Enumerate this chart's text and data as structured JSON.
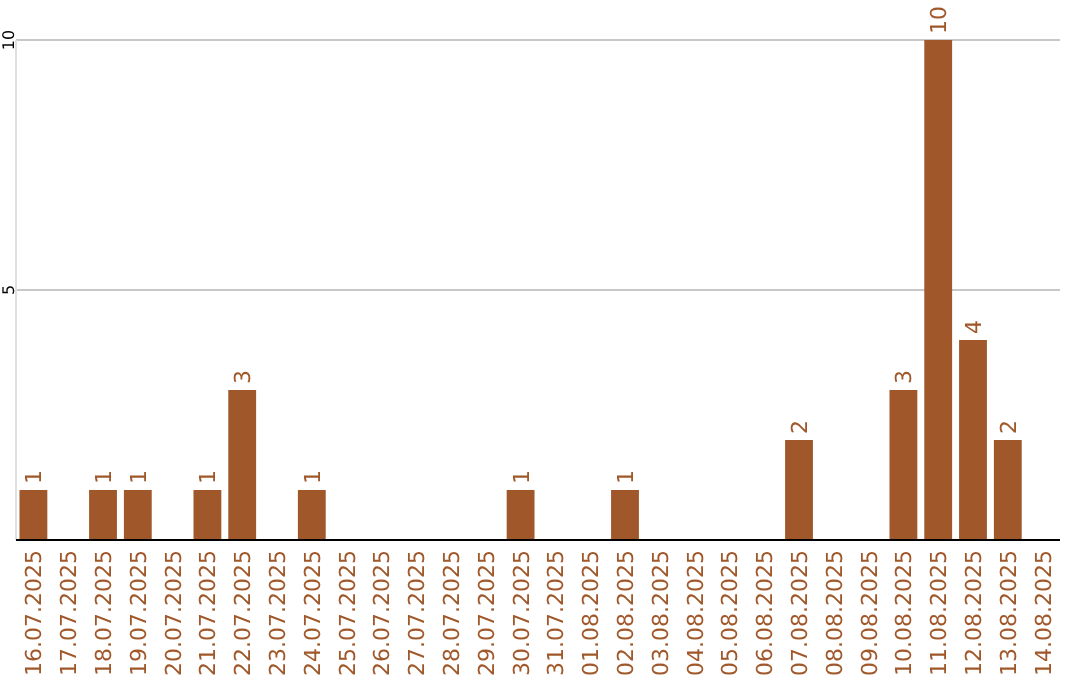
{
  "chart_data": {
    "type": "bar",
    "categories": [
      "16.07.2025",
      "17.07.2025",
      "18.07.2025",
      "19.07.2025",
      "20.07.2025",
      "21.07.2025",
      "22.07.2025",
      "23.07.2025",
      "24.07.2025",
      "25.07.2025",
      "26.07.2025",
      "27.07.2025",
      "28.07.2025",
      "29.07.2025",
      "30.07.2025",
      "31.07.2025",
      "01.08.2025",
      "02.08.2025",
      "03.08.2025",
      "04.08.2025",
      "05.08.2025",
      "06.08.2025",
      "07.08.2025",
      "08.08.2025",
      "09.08.2025",
      "10.08.2025",
      "11.08.2025",
      "12.08.2025",
      "13.08.2025",
      "14.08.2025"
    ],
    "values": [
      1,
      null,
      1,
      1,
      null,
      1,
      3,
      null,
      1,
      null,
      null,
      null,
      null,
      null,
      1,
      null,
      null,
      1,
      null,
      null,
      null,
      null,
      2,
      null,
      null,
      3,
      10,
      4,
      2,
      null
    ],
    "color": "#a0582a",
    "ylim": [
      0,
      10
    ],
    "yticks": [
      5,
      10
    ],
    "grid": "y",
    "data_labels": true
  }
}
